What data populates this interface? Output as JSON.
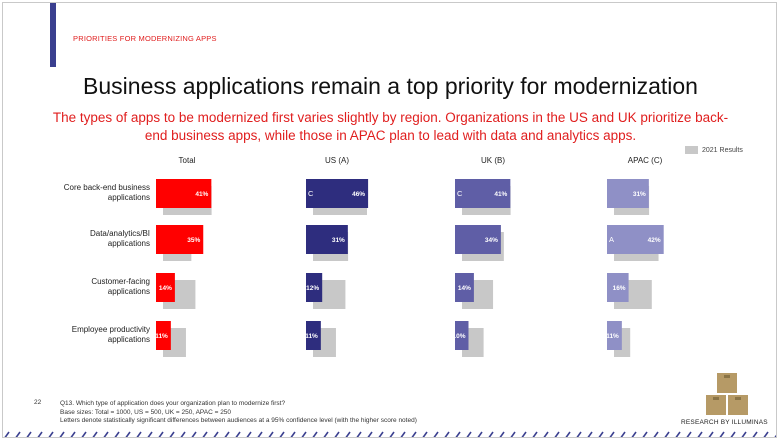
{
  "header": {
    "section_label": "PRIORITIES FOR MODERNIZING APPS",
    "title": "Business applications remain a top priority for modernization",
    "subtitle": "The types of apps to be modernized first varies slightly by region. Organizations in the US and UK prioritize back-end business apps, while those in APAC plan to lead with data and analytics apps."
  },
  "legend": {
    "label": "2021 Results"
  },
  "footer": {
    "page_number": "22",
    "question": "Q13.  Which type of application does your organization plan to modernize first?",
    "base_sizes": "Base sizes: Total = 1000, US = 500, UK = 250, APAC = 250",
    "note": "Letters denote statistically significant differences between audiences at a 95% confidence level (with the higher score noted)"
  },
  "brand": {
    "label": "RESEARCH BY ILLUMINAS"
  },
  "colors": {
    "accent": "#3a3f8f",
    "total": "#ff0000",
    "us": "#2e2d7e",
    "uk": "#5f5ea6",
    "apac": "#8f90c6",
    "prior": "#c8c8c8",
    "logo_box": "#b69a66"
  },
  "chart_data": {
    "type": "bar",
    "orientation": "horizontal",
    "categories": [
      "Core back-end business applications",
      "Data/analytics/BI applications",
      "Customer-facing applications",
      "Employee productivity applications"
    ],
    "category_lines": [
      [
        "Core back-end business",
        "applications"
      ],
      [
        "Data/analytics/BI",
        "applications"
      ],
      [
        "Customer-facing",
        "applications"
      ],
      [
        "Employee productivity",
        "applications"
      ]
    ],
    "series": [
      {
        "name": "Total",
        "values": [
          41,
          35,
          14,
          11
        ],
        "value_labels": [
          "41%",
          "35%",
          "14%",
          "11%"
        ],
        "sig_letters": [
          "",
          "",
          "",
          ""
        ],
        "prior_values": [
          36,
          21,
          24,
          17
        ]
      },
      {
        "name": "US (A)",
        "values": [
          46,
          31,
          12,
          11
        ],
        "value_labels": [
          "46%",
          "31%",
          "12%",
          "11%"
        ],
        "sig_letters": [
          "C",
          "",
          "",
          ""
        ],
        "prior_values": [
          40,
          26,
          24,
          17
        ]
      },
      {
        "name": "UK (B)",
        "values": [
          41,
          34,
          14,
          10
        ],
        "value_labels": [
          "41%",
          "34%",
          "14%",
          "10%"
        ],
        "sig_letters": [
          "C",
          "",
          "",
          ""
        ],
        "prior_values": [
          36,
          31,
          23,
          16
        ]
      },
      {
        "name": "APAC (C)",
        "values": [
          31,
          42,
          16,
          11
        ],
        "value_labels": [
          "31%",
          "42%",
          "16%",
          "11%"
        ],
        "sig_letters": [
          "",
          "A",
          "",
          ""
        ],
        "prior_values": [
          26,
          33,
          28,
          12
        ]
      }
    ],
    "prior_series_name": "2021 Results",
    "legend_position": "top-right",
    "grid": false
  }
}
